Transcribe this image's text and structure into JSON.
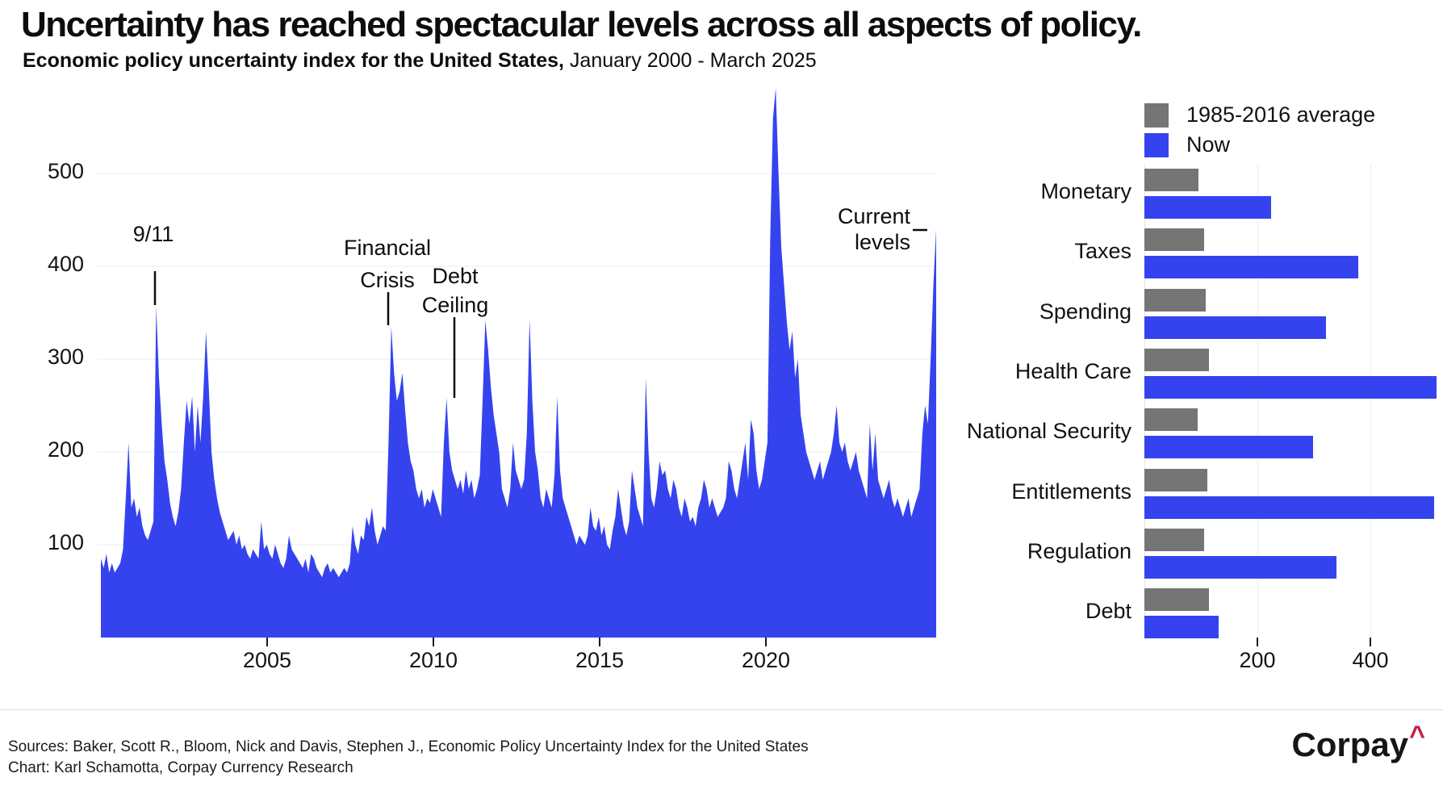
{
  "page": {
    "title": "Uncertainty has reached spectacular levels across all aspects of policy.",
    "subtitle_bold": "Economic policy uncertainty index for the United States,",
    "subtitle_rest": " January 2000 - March 2025"
  },
  "footer": {
    "sources": "Sources: Baker, Scott R., Bloom, Nick and Davis, Stephen J., Economic Policy Uncertainty Index for the United States",
    "credit": "Chart: Karl Schamotta, Corpay Currency Research",
    "brand": "Corpay",
    "brand_caret": "^"
  },
  "colors": {
    "blue": "#3543ef",
    "gray": "#757575",
    "grid": "#ededed",
    "text": "#0d0d0d",
    "caret_red": "#c41f45"
  },
  "chart_data": [
    {
      "type": "area",
      "name": "epu-timeseries",
      "title": "Economic policy uncertainty index for the United States",
      "x_start_year": 2000.0,
      "x_step_years": 0.08333,
      "period_label": "January 2000 - March 2025",
      "ylim": [
        0,
        600
      ],
      "yticks": [
        100,
        200,
        300,
        400,
        500
      ],
      "xticks": [
        2005,
        2010,
        2015,
        2020
      ],
      "grid": "horizontal-only",
      "series": [
        {
          "name": "US economic policy uncertainty index (monthly)",
          "values": [
            85,
            75,
            90,
            70,
            80,
            70,
            75,
            80,
            95,
            150,
            210,
            140,
            150,
            130,
            140,
            120,
            110,
            105,
            115,
            125,
            357,
            280,
            230,
            190,
            170,
            145,
            130,
            120,
            135,
            160,
            210,
            255,
            230,
            260,
            200,
            250,
            210,
            260,
            330,
            270,
            200,
            170,
            150,
            135,
            125,
            115,
            105,
            110,
            115,
            100,
            110,
            95,
            100,
            90,
            85,
            95,
            90,
            85,
            125,
            95,
            100,
            90,
            85,
            100,
            90,
            80,
            75,
            85,
            110,
            95,
            90,
            85,
            80,
            75,
            85,
            70,
            90,
            85,
            75,
            70,
            65,
            75,
            80,
            70,
            75,
            70,
            65,
            70,
            75,
            70,
            80,
            120,
            100,
            90,
            110,
            105,
            130,
            120,
            140,
            115,
            100,
            110,
            120,
            115,
            210,
            335,
            285,
            255,
            265,
            285,
            245,
            210,
            190,
            180,
            160,
            150,
            160,
            140,
            150,
            145,
            160,
            150,
            140,
            130,
            210,
            258,
            200,
            180,
            170,
            160,
            170,
            155,
            180,
            160,
            170,
            150,
            160,
            175,
            255,
            342,
            310,
            270,
            240,
            220,
            200,
            160,
            150,
            140,
            160,
            210,
            180,
            170,
            160,
            170,
            220,
            343,
            255,
            200,
            180,
            150,
            140,
            160,
            150,
            140,
            175,
            260,
            180,
            150,
            140,
            130,
            120,
            110,
            100,
            110,
            105,
            100,
            110,
            140,
            120,
            115,
            130,
            110,
            120,
            100,
            95,
            115,
            130,
            160,
            140,
            120,
            110,
            125,
            180,
            160,
            140,
            130,
            120,
            280,
            200,
            150,
            140,
            160,
            190,
            175,
            180,
            160,
            150,
            170,
            160,
            140,
            130,
            150,
            140,
            125,
            130,
            120,
            140,
            150,
            170,
            160,
            140,
            150,
            140,
            130,
            135,
            140,
            150,
            190,
            180,
            160,
            150,
            170,
            190,
            210,
            170,
            235,
            220,
            180,
            160,
            170,
            190,
            210,
            430,
            560,
            592,
            500,
            420,
            380,
            340,
            310,
            330,
            280,
            300,
            240,
            220,
            200,
            190,
            180,
            170,
            180,
            190,
            170,
            180,
            190,
            200,
            220,
            250,
            210,
            200,
            210,
            190,
            180,
            190,
            200,
            180,
            170,
            160,
            150,
            230,
            180,
            220,
            170,
            160,
            150,
            160,
            170,
            150,
            140,
            150,
            140,
            130,
            140,
            150,
            130,
            140,
            150,
            160,
            220,
            250,
            230,
            300,
            380,
            440
          ]
        }
      ],
      "annotations": [
        {
          "label": "9/11",
          "year": 2001.6,
          "value": 358
        },
        {
          "label": "Financial Crisis",
          "year": 2008.64,
          "value": 336
        },
        {
          "label": "Debt Ceiling",
          "year": 2010.63,
          "value": 258
        },
        {
          "label": "Current levels",
          "year": 2025.2,
          "value": 440
        }
      ]
    },
    {
      "type": "bar",
      "name": "category-comparison",
      "orientation": "horizontal",
      "categories": [
        "Monetary",
        "Taxes",
        "Spending",
        "Health Care",
        "National Security",
        "Entitlements",
        "Regulation",
        "Debt"
      ],
      "series": [
        {
          "name": "1985-2016 average",
          "color": "#757575",
          "values": [
            95,
            105,
            108,
            114,
            94,
            111,
            106,
            114
          ]
        },
        {
          "name": "Now",
          "color": "#3543ef",
          "values": [
            224,
            379,
            322,
            517,
            299,
            513,
            340,
            131
          ]
        }
      ],
      "xticks": [
        200,
        400
      ],
      "xlim": [
        0,
        529
      ],
      "legend_position": "top"
    }
  ]
}
